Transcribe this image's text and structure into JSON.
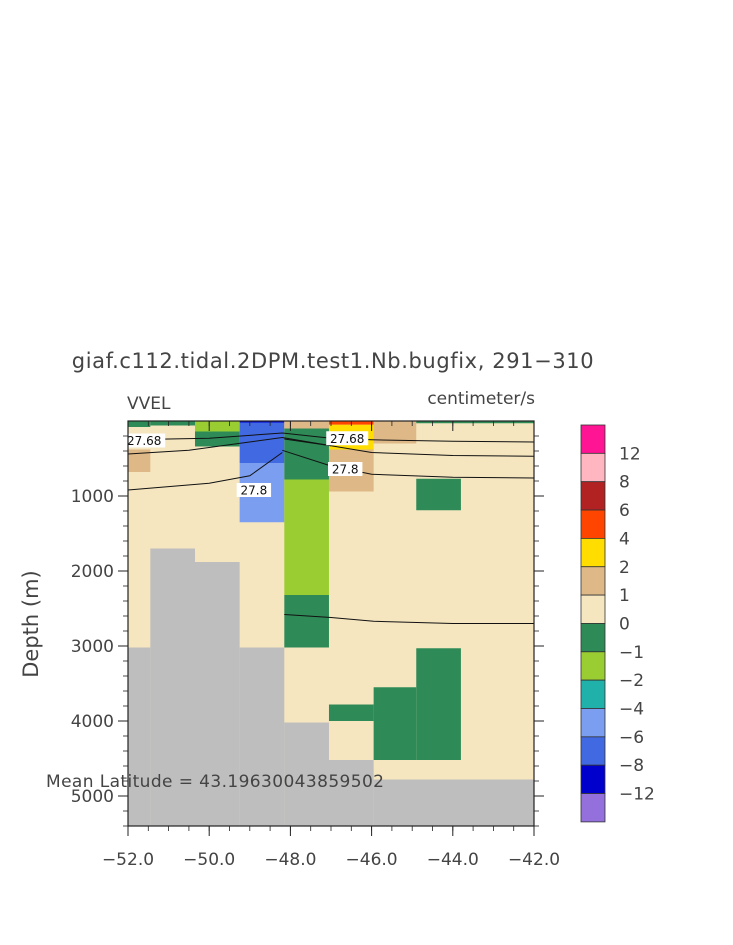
{
  "chart_data": {
    "type": "heatmap",
    "title": "giaf.c112.tidal.2DPM.test1.Nb.bugfix, 291−310",
    "variable": "VVEL",
    "units": "centimeter/s",
    "ylabel": "Depth (m)",
    "xlabel": "",
    "xlim": [
      -52.0,
      -42.0
    ],
    "ylim": [
      5400,
      0
    ],
    "y_reversed": true,
    "x_ticks": [
      "−52.0",
      "−50.0",
      "−48.0",
      "−46.0",
      "−44.0",
      "−42.0"
    ],
    "x_tick_values": [
      -52,
      -50,
      -48,
      -46,
      -44,
      -42
    ],
    "y_ticks": [
      "1000",
      "2000",
      "3000",
      "4000",
      "5000"
    ],
    "y_tick_values": [
      1000,
      2000,
      3000,
      4000,
      5000
    ],
    "annotation": "Mean Latitude = 43.19630043859502",
    "colorbar": {
      "labels": [
        "12",
        "8",
        "6",
        "4",
        "2",
        "1",
        "0",
        "−1",
        "−2",
        "−4",
        "−6",
        "−8",
        "−12"
      ],
      "colors": [
        "#ff1493",
        "#ffb6c1",
        "#b22222",
        "#ff4500",
        "#ffdd00",
        "#deb887",
        "#f5e6c0",
        "#2e8b57",
        "#9acd32",
        "#20b2aa",
        "#7b9ef0",
        "#4169e1",
        "#0000cd",
        "#9370db"
      ]
    },
    "background_color": "#f5e6c0",
    "land_color": "#bebebe",
    "cells": [
      {
        "x0": -52.0,
        "x1": -51.45,
        "y0": 0,
        "y1": 80,
        "color": "#2e8b57"
      },
      {
        "x0": -51.45,
        "x1": -50.35,
        "y0": 0,
        "y1": 60,
        "color": "#2e8b57"
      },
      {
        "x0": -50.35,
        "x1": -49.25,
        "y0": 0,
        "y1": 140,
        "color": "#9acd32"
      },
      {
        "x0": -50.35,
        "x1": -49.25,
        "y0": 140,
        "y1": 340,
        "color": "#2e8b57"
      },
      {
        "x0": -49.25,
        "x1": -48.15,
        "y0": 0,
        "y1": 20,
        "color": "#0000cd"
      },
      {
        "x0": -49.25,
        "x1": -48.15,
        "y0": 20,
        "y1": 560,
        "color": "#4169e1"
      },
      {
        "x0": -49.25,
        "x1": -48.15,
        "y0": 560,
        "y1": 1350,
        "color": "#7b9ef0"
      },
      {
        "x0": -48.15,
        "x1": -47.05,
        "y0": 0,
        "y1": 100,
        "color": "#deb887"
      },
      {
        "x0": -48.15,
        "x1": -47.05,
        "y0": 100,
        "y1": 780,
        "color": "#2e8b57"
      },
      {
        "x0": -48.15,
        "x1": -47.05,
        "y0": 780,
        "y1": 2320,
        "color": "#9acd32"
      },
      {
        "x0": -48.15,
        "x1": -47.05,
        "y0": 2320,
        "y1": 3020,
        "color": "#2e8b57"
      },
      {
        "x0": -47.05,
        "x1": -45.95,
        "y0": 0,
        "y1": 50,
        "color": "#ff4500"
      },
      {
        "x0": -47.05,
        "x1": -45.95,
        "y0": 50,
        "y1": 380,
        "color": "#ffdd00"
      },
      {
        "x0": -47.05,
        "x1": -45.95,
        "y0": 380,
        "y1": 560,
        "color": "#deb887"
      },
      {
        "x0": -47.05,
        "x1": -45.95,
        "y0": 560,
        "y1": 940,
        "color": "#deb887"
      },
      {
        "x0": -45.95,
        "x1": -44.9,
        "y0": 0,
        "y1": 300,
        "color": "#deb887"
      },
      {
        "x0": -52.0,
        "x1": -51.45,
        "y0": 380,
        "y1": 680,
        "color": "#deb887"
      },
      {
        "x0": -44.9,
        "x1": -42.0,
        "y0": 0,
        "y1": 30,
        "color": "#2e8b57"
      },
      {
        "x0": -44.9,
        "x1": -43.8,
        "y0": 770,
        "y1": 1190,
        "color": "#2e8b57"
      },
      {
        "x0": -44.9,
        "x1": -43.8,
        "y0": 3030,
        "y1": 4520,
        "color": "#2e8b57"
      },
      {
        "x0": -45.95,
        "x1": -44.9,
        "y0": 3550,
        "y1": 4520,
        "color": "#2e8b57"
      },
      {
        "x0": -47.05,
        "x1": -45.95,
        "y0": 3780,
        "y1": 4000,
        "color": "#2e8b57"
      }
    ],
    "land": [
      {
        "x0": -52.0,
        "x1": -51.45,
        "y0": 3020,
        "y1": 5400
      },
      {
        "x0": -51.45,
        "x1": -50.35,
        "y0": 1700,
        "y1": 5400
      },
      {
        "x0": -50.35,
        "x1": -49.25,
        "y0": 1880,
        "y1": 5400
      },
      {
        "x0": -49.25,
        "x1": -48.15,
        "y0": 3020,
        "y1": 5400
      },
      {
        "x0": -48.15,
        "x1": -47.05,
        "y0": 4020,
        "y1": 5400
      },
      {
        "x0": -47.05,
        "x1": -45.95,
        "y0": 4520,
        "y1": 5400
      },
      {
        "x0": -45.95,
        "x1": -42.0,
        "y0": 4780,
        "y1": 5400
      }
    ],
    "contours": [
      {
        "label": "27.68",
        "label_at": [
          -51.6,
          260
        ],
        "points": [
          [
            -52.0,
            250
          ],
          [
            -50.0,
            230
          ],
          [
            -48.2,
            160
          ],
          [
            -47.0,
            230
          ],
          [
            -46.0,
            250
          ],
          [
            -44.0,
            270
          ],
          [
            -42.0,
            280
          ]
        ]
      },
      {
        "label": "",
        "points": [
          [
            -52.0,
            440
          ],
          [
            -50.5,
            390
          ],
          [
            -48.2,
            220
          ],
          [
            -47.0,
            330
          ],
          [
            -46.0,
            420
          ],
          [
            -44.0,
            460
          ],
          [
            -42.0,
            470
          ]
        ]
      },
      {
        "label": "27.68",
        "label_at": [
          -46.6,
          230
        ],
        "points": [
          [
            -48.15,
            240
          ],
          [
            -47.0,
            330
          ]
        ]
      },
      {
        "label": "27.8",
        "label_at": [
          -46.65,
          640
        ],
        "points": [
          [
            -48.2,
            390
          ],
          [
            -47.0,
            600
          ],
          [
            -46.0,
            710
          ],
          [
            -44.0,
            750
          ],
          [
            -42.0,
            760
          ]
        ]
      },
      {
        "label": "27.8",
        "label_at": [
          -48.9,
          920
        ],
        "points": [
          [
            -52.0,
            920
          ],
          [
            -50.0,
            830
          ],
          [
            -49.0,
            730
          ],
          [
            -48.2,
            420
          ]
        ]
      },
      {
        "label": "",
        "points": [
          [
            -48.15,
            2580
          ],
          [
            -47.0,
            2620
          ],
          [
            -45.95,
            2670
          ],
          [
            -44.0,
            2700
          ],
          [
            -42.0,
            2700
          ]
        ]
      }
    ]
  }
}
